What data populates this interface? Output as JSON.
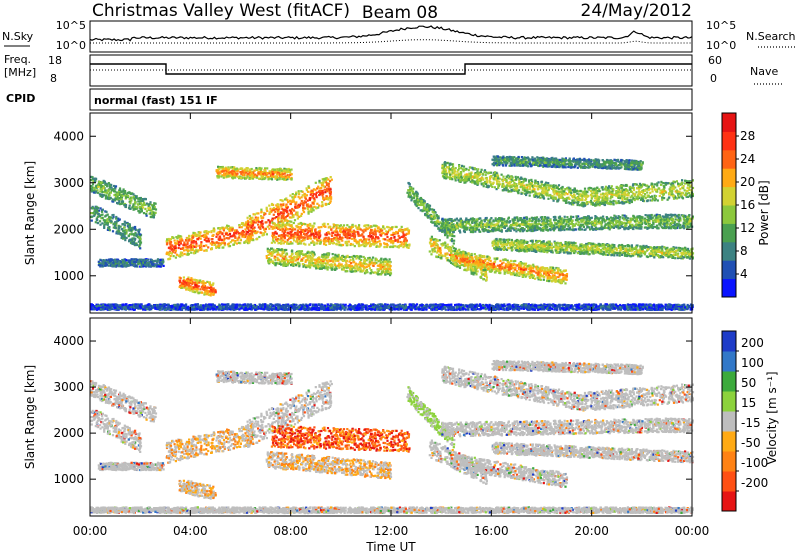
{
  "header": {
    "station": "Christmas Valley West (fitACF)",
    "beam": "Beam 08",
    "date": "24/May/2012"
  },
  "nsky_panel": {
    "left_label": "N.Sky",
    "right_label": "N.Search",
    "left_ticks": [
      "10^5",
      "10^0"
    ],
    "right_ticks": [
      "10^5",
      "10^0"
    ]
  },
  "freq_panel": {
    "left_label_line1": "Freq.",
    "left_label_line2": "[MHz]",
    "left_ticks": [
      "18",
      "8"
    ],
    "right_label": "Nave",
    "right_ticks": [
      "60",
      "0"
    ]
  },
  "cpid": {
    "label": "CPID",
    "value": "normal (fast) 151 IF"
  },
  "chart_data": [
    {
      "type": "heatmap",
      "title": "",
      "xlabel": "",
      "ylabel": "Slant Range [km]",
      "y_ticks": [
        "1000",
        "2000",
        "3000",
        "4000"
      ],
      "ylim": [
        200,
        4500
      ],
      "xlim": [
        "00:00",
        "24:00"
      ],
      "colorbar": {
        "label": "Power [dB]",
        "ticks": [
          "4",
          "8",
          "12",
          "16",
          "20",
          "24",
          "28"
        ],
        "range": [
          0,
          32
        ],
        "colors": [
          "#0a14ff",
          "#2050b4",
          "#3c8282",
          "#4aa050",
          "#8cc83c",
          "#d2d232",
          "#ffaa14",
          "#ff6414",
          "#ff3214",
          "#e61414"
        ]
      },
      "grid": false
    },
    {
      "type": "heatmap",
      "title": "",
      "xlabel": "Time UT",
      "ylabel": "Slant Range [km]",
      "x_ticks": [
        "00:00",
        "04:00",
        "08:00",
        "12:00",
        "16:00",
        "20:00",
        "00:00"
      ],
      "y_ticks": [
        "1000",
        "2000",
        "3000",
        "4000"
      ],
      "ylim": [
        200,
        4500
      ],
      "xlim": [
        "00:00",
        "24:00"
      ],
      "colorbar": {
        "label": "Velocity [m s⁻¹]",
        "ticks": [
          "200",
          "100",
          "50",
          "15",
          "-15",
          "-50",
          "-100",
          "-200"
        ],
        "colors": [
          "#1e3cc8",
          "#3278c8",
          "#3caa3c",
          "#8cd23c",
          "#bebebe",
          "#ffaa14",
          "#ff8214",
          "#ff5014",
          "#e61414"
        ]
      },
      "grid": false
    }
  ]
}
